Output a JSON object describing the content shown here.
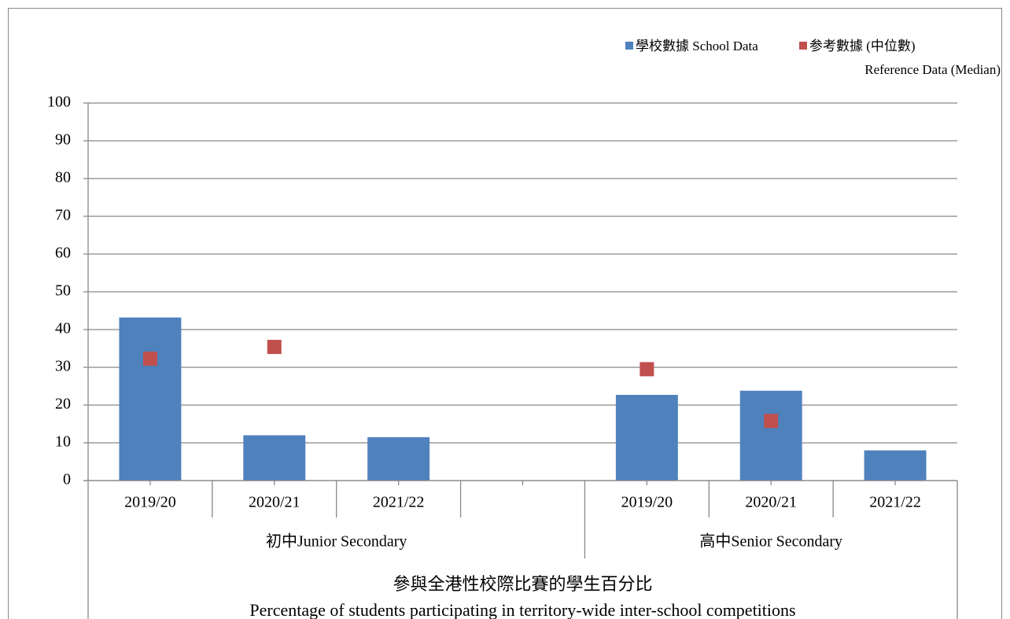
{
  "chart_data": {
    "type": "bar",
    "title": [
      "參與全港性校際比賽的學生百分比",
      "Percentage of students participating in territory-wide inter-school competitions"
    ],
    "categories": [
      "2019/20",
      "2020/21",
      "2021/22",
      null,
      "2019/20",
      "2020/21",
      "2021/22"
    ],
    "category_groups": [
      "初中Junior Secondary",
      "初中Junior Secondary",
      "初中Junior Secondary",
      "初中Junior Secondary",
      "高中Senior Secondary",
      "高中Senior Secondary",
      "高中Senior Secondary"
    ],
    "series": [
      {
        "name": [
          "學校數據 School Data"
        ],
        "type": "bar",
        "color": "#4f81bd",
        "values": [
          43.2,
          12,
          11.5,
          null,
          22.7,
          23.8,
          8
        ]
      },
      {
        "name": [
          "参考數據 (中位數)",
          "Reference Data (Median)"
        ],
        "type": "marker",
        "color": "#c0504d",
        "values": [
          32.3,
          35.4,
          null,
          null,
          29.5,
          15.8,
          null
        ]
      }
    ],
    "ylim": [
      0,
      100
    ],
    "yticks": [
      0,
      10,
      20,
      30,
      40,
      50,
      60,
      70,
      80,
      90,
      100
    ],
    "grid": true,
    "legend": "top-right"
  }
}
